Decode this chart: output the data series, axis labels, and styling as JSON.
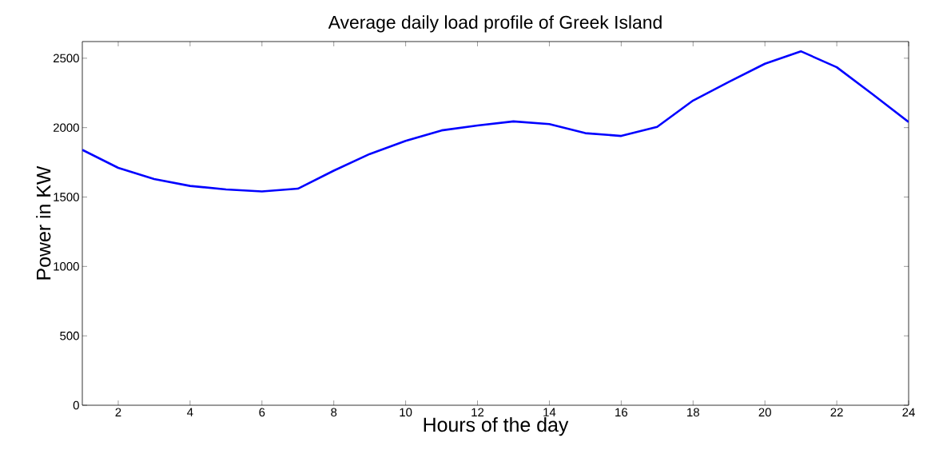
{
  "chart_data": {
    "type": "line",
    "title": "Average daily load profile of Greek Island",
    "xlabel": "Hours of the day",
    "ylabel": "Power in KW",
    "x": [
      1,
      2,
      3,
      4,
      5,
      6,
      7,
      8,
      9,
      10,
      11,
      12,
      13,
      14,
      15,
      16,
      17,
      18,
      19,
      20,
      21,
      22,
      23,
      24
    ],
    "series": [
      {
        "color": "#0000ff",
        "values": [
          1840,
          1710,
          1630,
          1580,
          1555,
          1540,
          1560,
          1690,
          1810,
          1905,
          1980,
          2015,
          2045,
          2025,
          1960,
          1940,
          2005,
          2195,
          2330,
          2460,
          2550,
          2435,
          2240,
          2040
        ]
      }
    ],
    "xlim": [
      1,
      24
    ],
    "xticks": [
      2,
      4,
      6,
      8,
      10,
      12,
      14,
      16,
      18,
      20,
      22,
      24
    ],
    "ylim": [
      0,
      2620
    ],
    "yticks": [
      0,
      500,
      1000,
      1500,
      2000,
      2500
    ],
    "grid": false,
    "marker": "none",
    "line_style": "solid"
  }
}
